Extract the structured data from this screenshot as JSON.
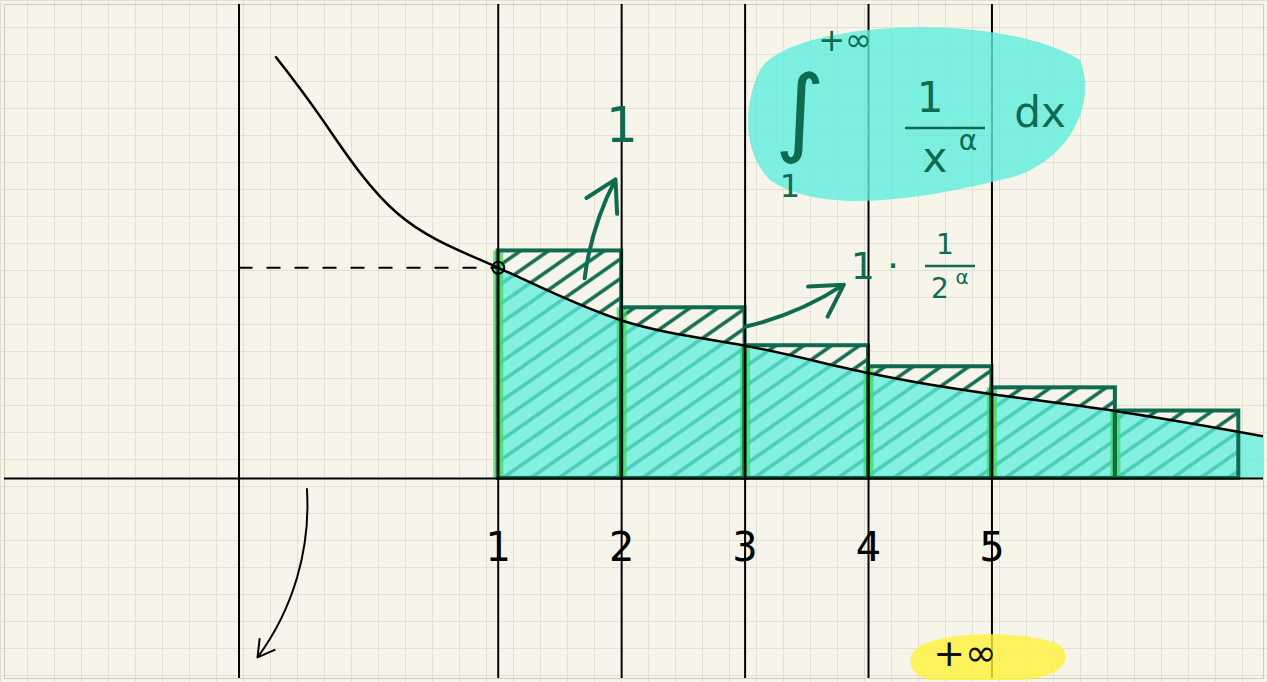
{
  "chart_data": {
    "type": "line",
    "curve": {
      "x": [
        -0.8,
        -0.42,
        0.18,
        1,
        2,
        3,
        4,
        5,
        6,
        7.2
      ],
      "values": [
        2.0,
        1.7,
        1.26,
        1.0,
        0.75,
        0.63,
        0.5,
        0.4,
        0.32,
        0.2
      ]
    },
    "rectangles": {
      "edges": [
        1,
        2,
        3,
        4,
        5,
        6,
        7
      ],
      "heights": [
        1.08,
        0.81,
        0.63,
        0.53,
        0.43,
        0.32
      ]
    },
    "xlim": [
      -3,
      7.2
    ],
    "ylim": [
      -0.95,
      2.25
    ],
    "xticks": [
      1,
      2,
      3,
      4,
      5
    ],
    "tick_labels": "x",
    "integral": {
      "symbol": "∫",
      "lower": "1",
      "upper": "+∞",
      "numerator": "1",
      "base": "x",
      "exponent": "α",
      "differential": "dx"
    },
    "annotations": {
      "first": "1",
      "second": {
        "prefix": "1 ·",
        "numerator": "1",
        "base": "2",
        "exponent": "α"
      }
    },
    "bottom_text": "+∞"
  }
}
